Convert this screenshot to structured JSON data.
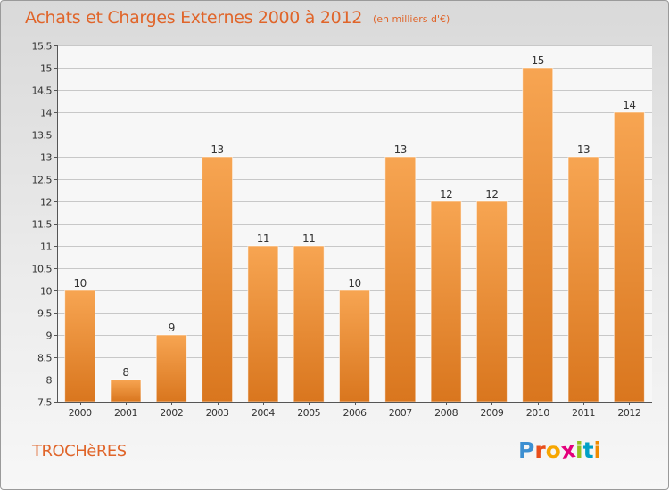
{
  "header": {
    "title": "Achats et Charges Externes 2000 à 2012",
    "unit": "(en milliers d'€)"
  },
  "footer": {
    "commune": "TROCHèRES",
    "logo_letters": [
      "P",
      "r",
      "o",
      "x",
      "i",
      "t",
      "i"
    ],
    "logo_colors": [
      "#3d8fd1",
      "#e94e1b",
      "#f7a600",
      "#e4007c",
      "#95c11f",
      "#00a0c6",
      "#f08a00"
    ]
  },
  "chart_data": {
    "type": "bar",
    "title": "Achats et Charges Externes 2000 à 2012",
    "xlabel": "",
    "ylabel": "",
    "categories": [
      "2000",
      "2001",
      "2002",
      "2003",
      "2004",
      "2005",
      "2006",
      "2007",
      "2008",
      "2009",
      "2010",
      "2011",
      "2012"
    ],
    "values": [
      10,
      8,
      9,
      13,
      11,
      11,
      10,
      13,
      12,
      12,
      15,
      13,
      14
    ],
    "data_labels": [
      "10",
      "8",
      "9",
      "13",
      "11",
      "11",
      "10",
      "13",
      "12",
      "12",
      "15",
      "13",
      "14"
    ],
    "ylim": [
      7.5,
      15.5
    ],
    "yticks": [
      7.5,
      8,
      8.5,
      9,
      9.5,
      10,
      10.5,
      11,
      11.5,
      12,
      12.5,
      13,
      13.5,
      14,
      14.5,
      15,
      15.5
    ],
    "ytick_labels": [
      "7.5",
      "8",
      "8.5",
      "9",
      "9.5",
      "10",
      "10.5",
      "11",
      "11.5",
      "12",
      "12.5",
      "13",
      "13.5",
      "14",
      "14.5",
      "15",
      "15.5"
    ],
    "grid": true,
    "legend": "none",
    "bar_color_top": "#f7a552",
    "bar_color_bottom": "#d9761e",
    "grid_color": "#c8c8c8"
  }
}
